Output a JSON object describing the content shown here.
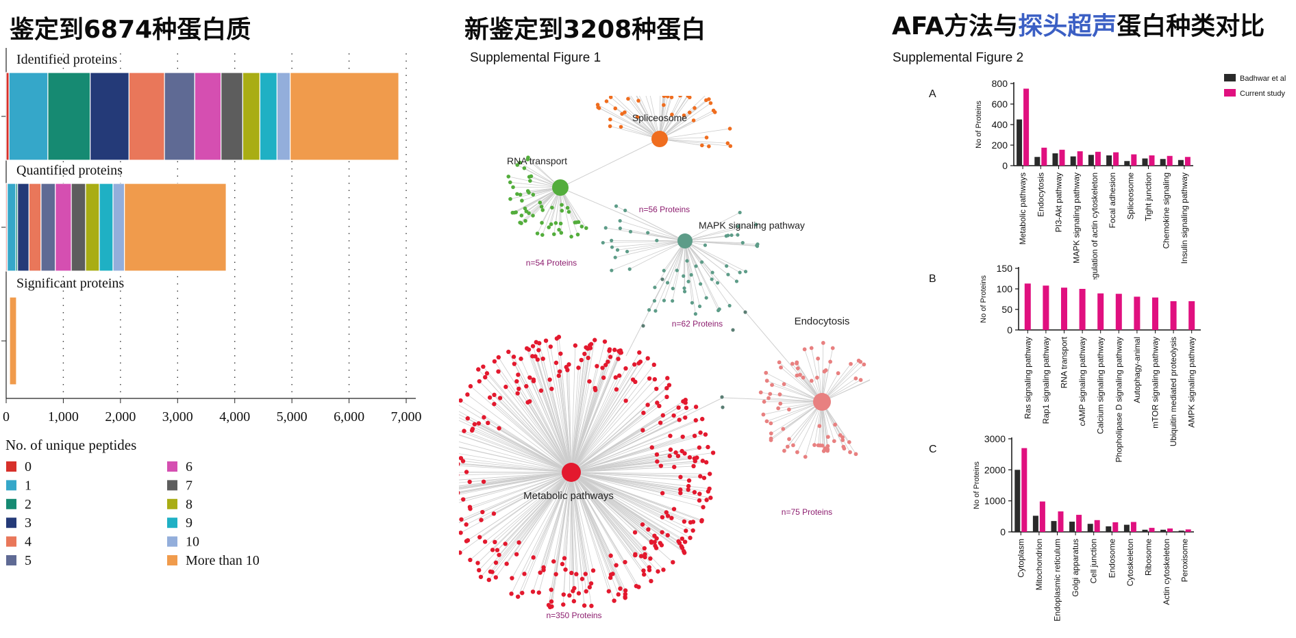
{
  "headings": {
    "left": "鉴定到6874种蛋白质",
    "middle": "新鉴定到3208种蛋白",
    "right_prefix": "AFA方法与",
    "right_highlight": "探头超声",
    "right_suffix": "蛋白种类对比"
  },
  "supplemental": {
    "fig1": "Supplemental Figure 1",
    "fig2": "Supplemental Figure 2"
  },
  "colors": {
    "pink": "#e0107f",
    "black_bar": "#2a2a2a",
    "highlight_text": "#3b5fc4",
    "count_label": "#8c1c6e"
  },
  "chart_data": [
    {
      "id": "peptide_stacked",
      "type": "bar",
      "orientation": "horizontal-stacked",
      "xlim": [
        0,
        7000
      ],
      "xticks": [
        "0",
        "1,000",
        "2,000",
        "3,000",
        "4,000",
        "5,000",
        "6,000",
        "7,000"
      ],
      "legend_title": "No. of unique peptides",
      "legend": [
        {
          "label": "0",
          "color": "#d7302a"
        },
        {
          "label": "1",
          "color": "#35a7c9"
        },
        {
          "label": "2",
          "color": "#168a72"
        },
        {
          "label": "3",
          "color": "#243a78"
        },
        {
          "label": "4",
          "color": "#e9775a"
        },
        {
          "label": "5",
          "color": "#5f6a94"
        },
        {
          "label": "6",
          "color": "#d54fb1"
        },
        {
          "label": "7",
          "color": "#5d5d5d"
        },
        {
          "label": "8",
          "color": "#a9ad14"
        },
        {
          "label": "9",
          "color": "#1fb0c4"
        },
        {
          "label": "10",
          "color": "#93aedb"
        },
        {
          "label": "More than 10",
          "color": "#f09b4c"
        }
      ],
      "bars": [
        {
          "name": "Identified proteins",
          "segments": [
            50,
            680,
            740,
            680,
            620,
            530,
            460,
            380,
            300,
            300,
            230,
            1900
          ]
        },
        {
          "name": "Quantified proteins",
          "segments": [
            20,
            150,
            30,
            200,
            210,
            250,
            280,
            250,
            240,
            240,
            200,
            1780
          ]
        },
        {
          "name": "Significant proteins",
          "segments": [
            0,
            0,
            0,
            0,
            0,
            0,
            0,
            0,
            0,
            0,
            0,
            120
          ]
        }
      ]
    },
    {
      "id": "network",
      "type": "network",
      "hubs": [
        {
          "name": "Spliceosome",
          "count_label": "n=56 Proteins",
          "color": "#ef6d1f",
          "n": 56
        },
        {
          "name": "RNA transport",
          "count_label": "n=54 Proteins",
          "color": "#53ad3c",
          "n": 54
        },
        {
          "name": "MAPK signaling pathway",
          "count_label": "n=62 Proteins",
          "color": "#5d9c88",
          "n": 62
        },
        {
          "name": "Endocytosis",
          "count_label": "n=75 Proteins",
          "color": "#e88080",
          "n": 75
        },
        {
          "name": "Metabolic pathways",
          "count_label": "n=350 Proteins",
          "color": "#e3192e",
          "n": 350
        }
      ]
    },
    {
      "id": "panel_A",
      "label": "A",
      "type": "bar",
      "ylabel": "No of Proteins",
      "ylim": [
        0,
        800
      ],
      "yticks": [
        "0",
        "200",
        "400",
        "600",
        "800"
      ],
      "legend": [
        "Badhwar et al",
        "Current study"
      ],
      "categories": [
        "Metabolic pathways",
        "Endocytosis",
        "PI3-Akt pathway",
        "MAPK signaling pathway",
        "Regulation of actin cytoskeleton",
        "Focal adhesion",
        "Spliceosome",
        "Tight junction",
        "Chemokine signaling",
        "Insulin signaling pathway"
      ],
      "series": [
        {
          "name": "Badhwar et al",
          "values": [
            450,
            85,
            120,
            90,
            105,
            100,
            45,
            70,
            65,
            55
          ]
        },
        {
          "name": "Current study",
          "values": [
            750,
            175,
            155,
            140,
            135,
            130,
            110,
            100,
            95,
            85
          ]
        }
      ]
    },
    {
      "id": "panel_B",
      "label": "B",
      "type": "bar",
      "ylabel": "No of Proteins",
      "ylim": [
        0,
        150
      ],
      "yticks": [
        "0",
        "50",
        "100",
        "150"
      ],
      "categories": [
        "Ras signaling pathway",
        "Rap1 signaling pathway",
        "RNA transport",
        "cAMP signaling pathway",
        "Calcium signaling pathway",
        "Phopholipase D signaling pathway",
        "Autophagy-animal",
        "mTOR signaling pathway",
        "Ubiquitin mediated proteolysis",
        "AMPK signaling pathway"
      ],
      "series": [
        {
          "name": "Current study",
          "values": [
            113,
            108,
            103,
            100,
            89,
            88,
            81,
            79,
            70,
            70
          ]
        }
      ]
    },
    {
      "id": "panel_C",
      "label": "C",
      "type": "bar",
      "ylabel": "No of Proteins",
      "ylim": [
        0,
        3000
      ],
      "yticks": [
        "0",
        "1000",
        "2000",
        "3000"
      ],
      "categories": [
        "Cytoplasm",
        "Mitochondrion",
        "Endoplasmic reticulum",
        "Golgi apparatus",
        "Cell junction",
        "Endosome",
        "Cytoskeleton",
        "Ribosome",
        "Actin cytoskeleton",
        "Peroxisome"
      ],
      "series": [
        {
          "name": "Badhwar et al",
          "values": [
            2000,
            520,
            350,
            330,
            260,
            180,
            230,
            70,
            70,
            40
          ]
        },
        {
          "name": "Current study",
          "values": [
            2700,
            980,
            660,
            550,
            380,
            310,
            320,
            130,
            110,
            80
          ]
        }
      ]
    }
  ]
}
